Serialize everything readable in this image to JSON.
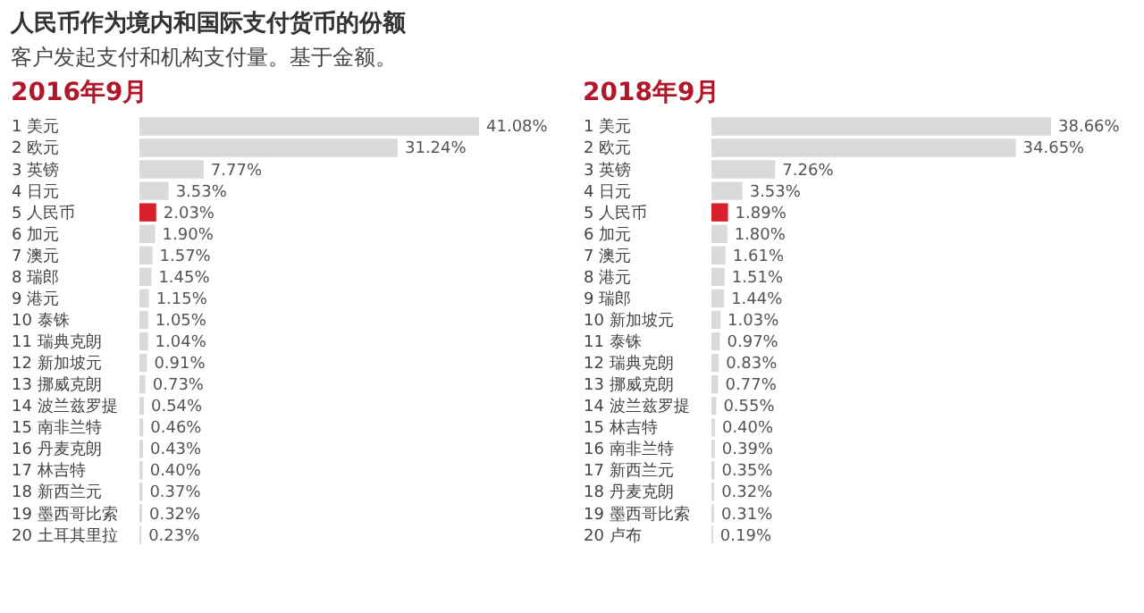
{
  "chart_data": [
    {
      "type": "bar",
      "orientation": "horizontal",
      "title": "2016年9月",
      "annotations": [
        "人民币作为境内和国际支付货币的份额",
        "客户发起支付和机构支付量。基于金额。"
      ],
      "categories": [
        "1 美元",
        "2 欧元",
        "3 英镑",
        "4 日元",
        "5 人民币",
        "6 加元",
        "7 澳元",
        "8 瑞郎",
        "9 港元",
        "10 泰铢",
        "11 瑞典克朗",
        "12 新加坡元",
        "13 挪威克朗",
        "14 波兰兹罗提",
        "15 南非兰特",
        "16 丹麦克朗",
        "17 林吉特",
        "18 新西兰元",
        "19 墨西哥比索",
        "20 土耳其里拉"
      ],
      "values": [
        41.08,
        31.24,
        7.77,
        3.53,
        2.03,
        1.9,
        1.57,
        1.45,
        1.15,
        1.05,
        1.04,
        0.91,
        0.73,
        0.54,
        0.46,
        0.43,
        0.4,
        0.37,
        0.32,
        0.23
      ],
      "value_labels": [
        "41.08%",
        "31.24%",
        "7.77%",
        "3.53%",
        "2.03%",
        "1.90%",
        "1.57%",
        "1.45%",
        "1.15%",
        "1.05%",
        "1.04%",
        "0.91%",
        "0.73%",
        "0.54%",
        "0.46%",
        "0.43%",
        "0.40%",
        "0.37%",
        "0.32%",
        "0.23%"
      ],
      "colors": [
        "#dcdad8",
        "#dcdad8",
        "#dcdad8",
        "#dcdad8",
        "#d7202a",
        "#dcdad8",
        "#dcdad8",
        "#dcdad8",
        "#dcdad8",
        "#dcdad8",
        "#dcdad8",
        "#dcdad8",
        "#dcdad8",
        "#dcdad8",
        "#dcdad8",
        "#dcdad8",
        "#dcdad8",
        "#dcdad8",
        "#dcdad8",
        "#dcdad8"
      ]
    },
    {
      "type": "bar",
      "orientation": "horizontal",
      "title": "2018年9月",
      "categories": [
        "1 美元",
        "2 欧元",
        "3 英镑",
        "4 日元",
        "5 人民币",
        "6 加元",
        "7 澳元",
        "8 港元",
        "9 瑞郎",
        "10 新加坡元",
        "11 泰铢",
        "12 瑞典克朗",
        "13 挪威克朗",
        "14 波兰兹罗提",
        "15 林吉特",
        "16 南非兰特",
        "17 新西兰元",
        "18 丹麦克朗",
        "19 墨西哥比索",
        "20 卢布"
      ],
      "values": [
        38.66,
        34.65,
        7.26,
        3.53,
        1.89,
        1.8,
        1.61,
        1.51,
        1.44,
        1.03,
        0.97,
        0.83,
        0.77,
        0.55,
        0.4,
        0.39,
        0.35,
        0.32,
        0.31,
        0.19
      ],
      "value_labels": [
        "38.66%",
        "34.65%",
        "7.26%",
        "3.53%",
        "1.89%",
        "1.80%",
        "1.61%",
        "1.51%",
        "1.44%",
        "1.03%",
        "0.97%",
        "0.83%",
        "0.77%",
        "0.55%",
        "0.40%",
        "0.39%",
        "0.35%",
        "0.32%",
        "0.31%",
        "0.19%"
      ],
      "colors": [
        "#dcdad8",
        "#dcdad8",
        "#dcdad8",
        "#dcdad8",
        "#d7202a",
        "#dcdad8",
        "#dcdad8",
        "#dcdad8",
        "#dcdad8",
        "#dcdad8",
        "#dcdad8",
        "#dcdad8",
        "#dcdad8",
        "#dcdad8",
        "#dcdad8",
        "#dcdad8",
        "#dcdad8",
        "#dcdad8",
        "#dcdad8",
        "#dcdad8"
      ]
    }
  ]
}
